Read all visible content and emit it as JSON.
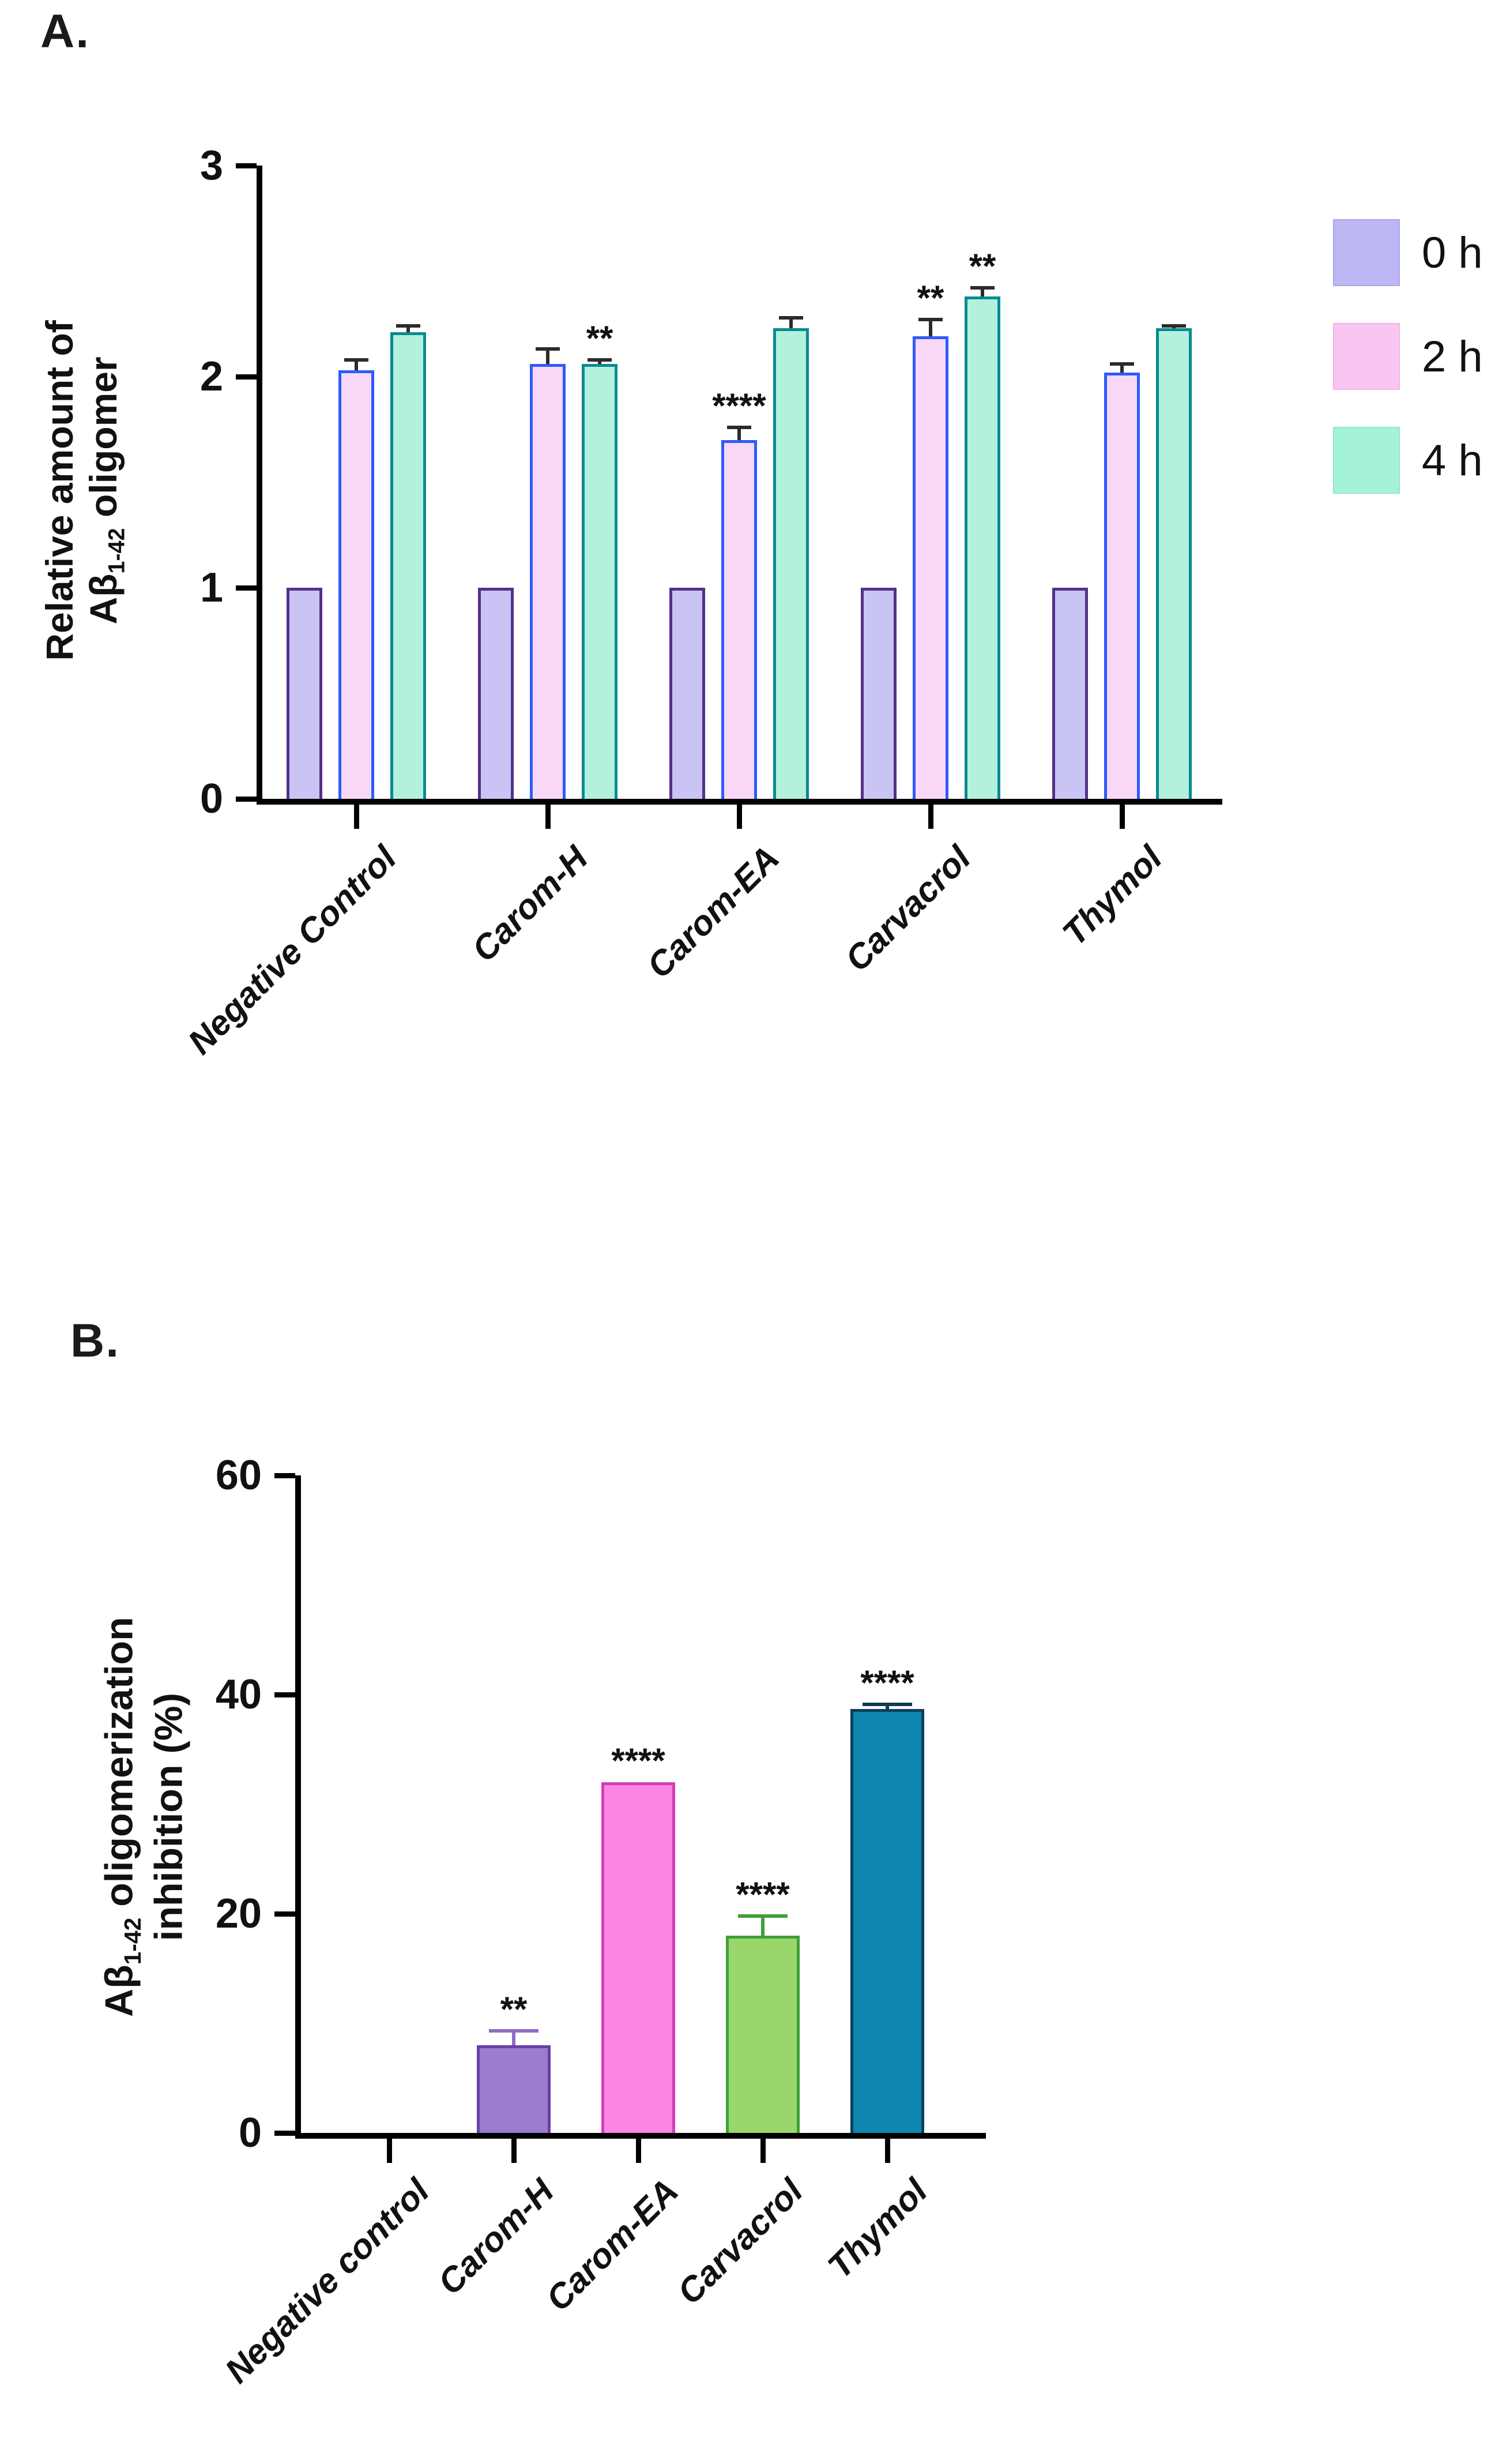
{
  "panelA": {
    "label": "A.",
    "ylabel": {
      "line1": "Relative amount of",
      "beta": "Aβ",
      "sub": "1-42",
      "rest": " oligomer"
    },
    "legend": {
      "items": [
        {
          "label": "0 h",
          "color": "#bdb8f4",
          "edge": "#aaa4ec"
        },
        {
          "label": "2 h",
          "color": "#f9c6f2",
          "edge": "#f0b2e8"
        },
        {
          "label": "4 h",
          "color": "#a5f3d7",
          "edge": "#8fe9c8"
        }
      ]
    }
  },
  "panelB": {
    "label": "B.",
    "ylabel": {
      "beta": "Aβ",
      "sub": "1-42",
      "rest": " oligomerization",
      "line2": "inhibition (%)"
    }
  },
  "chart_data": [
    {
      "id": "chartA",
      "type": "bar",
      "title": "",
      "ylabel": "Relative amount of Aβ1-42 oligomer",
      "xlabel": "",
      "ylim": [
        0,
        3
      ],
      "yticks": [
        0,
        1,
        2,
        3
      ],
      "grid": false,
      "legend_position": "right-top",
      "categories": [
        "Negative Control",
        "Carom-H",
        "Carom-EA",
        "Carvacrol",
        "Thymol"
      ],
      "series": [
        {
          "name": "0 h",
          "fill": "#c9c4f3",
          "stroke": "#533189",
          "values": [
            1.0,
            1.0,
            1.0,
            1.0,
            1.0
          ],
          "errors": [
            0,
            0,
            0,
            0,
            0
          ],
          "sig": [
            "",
            "",
            "",
            "",
            ""
          ]
        },
        {
          "name": "2 h",
          "fill": "#f8d8f6",
          "stroke": "#2e5bfc",
          "values": [
            2.03,
            2.06,
            1.7,
            2.19,
            2.02
          ],
          "errors": [
            0.05,
            0.07,
            0.06,
            0.08,
            0.04
          ],
          "sig": [
            "",
            "",
            "****",
            "**",
            ""
          ]
        },
        {
          "name": "4 h",
          "fill": "#b2f2dd",
          "stroke": "#0b8a8f",
          "values": [
            2.21,
            2.06,
            2.23,
            2.38,
            2.23
          ],
          "errors": [
            0.03,
            0.02,
            0.05,
            0.04,
            0.01
          ],
          "sig": [
            "",
            "**",
            "",
            "**",
            ""
          ]
        }
      ],
      "error_bar_color": "#2b2b2b"
    },
    {
      "id": "chartB",
      "type": "bar",
      "title": "",
      "ylabel": "Aβ1-42 oligomerization inhibition (%)",
      "xlabel": "",
      "ylim": [
        0,
        60
      ],
      "yticks": [
        0,
        20,
        40,
        60
      ],
      "grid": false,
      "categories": [
        "Negative control",
        "Carom-H",
        "Carom-EA",
        "Carvacrol",
        "Thymol"
      ],
      "bars": [
        {
          "label": "Negative control",
          "value": 0,
          "error": 0,
          "sig": "",
          "fill": "",
          "stroke": "",
          "err_color": ""
        },
        {
          "label": "Carom-H",
          "value": 8,
          "error": 1.3,
          "sig": "**",
          "fill": "#9c7cce",
          "stroke": "#6a3fa5",
          "err_color": "#8f6cc5"
        },
        {
          "label": "Carom-EA",
          "value": 32,
          "error": 0,
          "sig": "****",
          "fill": "#fb86e2",
          "stroke": "#d33eb5",
          "err_color": "#d33eb5"
        },
        {
          "label": "Carvacrol",
          "value": 18,
          "error": 1.8,
          "sig": "****",
          "fill": "#99d66b",
          "stroke": "#3f9f3b",
          "err_color": "#3f9f3b"
        },
        {
          "label": "Thymol",
          "value": 38.7,
          "error": 0.4,
          "sig": "****",
          "fill": "#0e86b0",
          "stroke": "#0a3f5e",
          "err_color": "#123c52"
        }
      ],
      "error_bar_color": "#2b2b2b"
    }
  ]
}
